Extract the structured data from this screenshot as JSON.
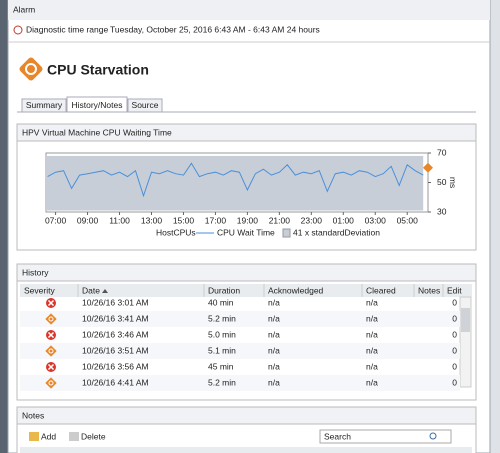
{
  "window": {
    "title": "Alarm"
  },
  "time_range": {
    "label": "Diagnostic time range",
    "value": "Tuesday, October 25, 2016  6:43 AM - 6:43 AM  24 hours"
  },
  "header": {
    "title": "CPU Starvation"
  },
  "tabs": [
    {
      "label": "Summary",
      "active": false
    },
    {
      "label": "History/Notes",
      "active": true
    },
    {
      "label": "Source",
      "active": false
    }
  ],
  "chart_data": {
    "type": "line",
    "title": "HPV Virtual Machine CPU Waiting Time",
    "y_label": "ms",
    "legend_title": "HostCPUs",
    "x": [
      6.5,
      7,
      7.5,
      8,
      8.5,
      9,
      9.5,
      10,
      10.5,
      11,
      11.5,
      12,
      12.5,
      13,
      13.5,
      14,
      14.5,
      15,
      15.5,
      16,
      16.5,
      17,
      17.5,
      18,
      18.5,
      19,
      19.5,
      20,
      20.5,
      21,
      21.5,
      22,
      22.5,
      23,
      23.5,
      24,
      24.5,
      25,
      25.5,
      26,
      26.5,
      27,
      27.5,
      28,
      28.5,
      29,
      29.5,
      30
    ],
    "series": [
      {
        "name": "CPU Wait Time",
        "color": "#4a90d9",
        "axis": "y2",
        "values": [
          54,
          57,
          58,
          46,
          55,
          56,
          57,
          58,
          55,
          57,
          54,
          58,
          41,
          57,
          56,
          58,
          56,
          55,
          63,
          54,
          56,
          57,
          55,
          58,
          57,
          45,
          56,
          59,
          55,
          57,
          62,
          55,
          57,
          56,
          58,
          44,
          56,
          57,
          55,
          58,
          57,
          54,
          56,
          61,
          48,
          62,
          58,
          55
        ]
      }
    ],
    "band": {
      "name": "41 x standardDeviation",
      "color": "#c8ced8",
      "low": 31,
      "high": 68
    },
    "xlim": [
      6.4,
      30.3
    ],
    "xticks": [
      {
        "value": 7,
        "label": "07:00"
      },
      {
        "value": 9,
        "label": "09:00"
      },
      {
        "value": 11,
        "label": "11:00"
      },
      {
        "value": 13,
        "label": "13:00"
      },
      {
        "value": 15,
        "label": "15:00"
      },
      {
        "value": 17,
        "label": "17:00"
      },
      {
        "value": 19,
        "label": "19:00"
      },
      {
        "value": 21,
        "label": "21:00"
      },
      {
        "value": 23,
        "label": "23:00"
      },
      {
        "value": 25,
        "label": "01:00"
      },
      {
        "value": 27,
        "label": "03:00"
      },
      {
        "value": 29,
        "label": "05:00"
      }
    ],
    "y2lim": [
      30,
      70
    ],
    "y2ticks": [
      30,
      50,
      70
    ]
  },
  "history": {
    "title": "History",
    "columns": [
      "Severity",
      "Date",
      "Duration",
      "Acknowledged",
      "Cleared",
      "Notes",
      "Edit"
    ],
    "rows": [
      {
        "severity": "critical",
        "cells": [
          "10/26/16 3:01 AM",
          "40 min",
          "n/a",
          "n/a",
          "0"
        ]
      },
      {
        "severity": "warning",
        "cells": [
          "10/26/16 3:41 AM",
          "5.2 min",
          "n/a",
          "n/a",
          "0"
        ]
      },
      {
        "severity": "critical",
        "cells": [
          "10/26/16 3:46 AM",
          "5.0 min",
          "n/a",
          "n/a",
          "0"
        ]
      },
      {
        "severity": "warning",
        "cells": [
          "10/26/16 3:51 AM",
          "5.1 min",
          "n/a",
          "n/a",
          "0"
        ]
      },
      {
        "severity": "critical",
        "cells": [
          "10/26/16 3:56 AM",
          "45 min",
          "n/a",
          "n/a",
          "0"
        ]
      },
      {
        "severity": "warning",
        "cells": [
          "10/26/16 4:41 AM",
          "5.2 min",
          "n/a",
          "n/a",
          "0"
        ]
      }
    ]
  },
  "notes": {
    "title": "Notes",
    "add": "Add",
    "delete": "Delete",
    "search_placeholder": "Search"
  }
}
